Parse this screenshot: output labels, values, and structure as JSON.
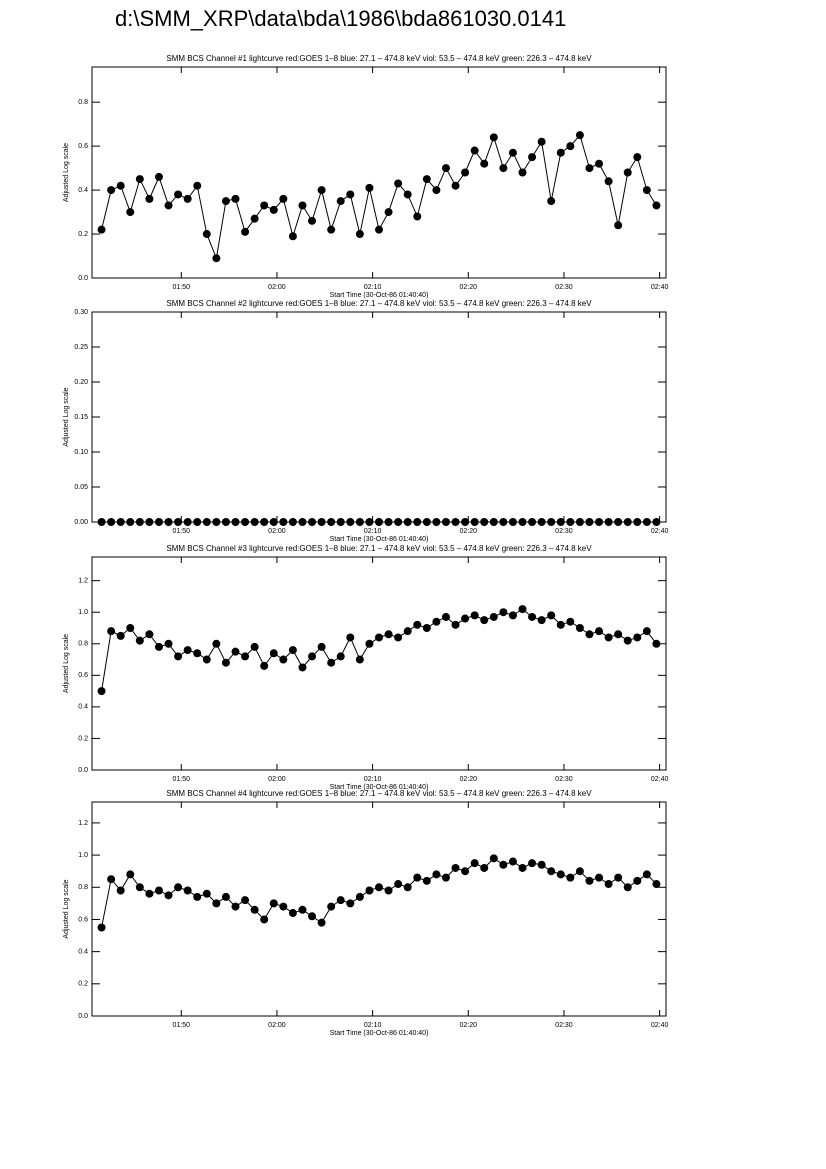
{
  "title": "d:\\SMM_XRP\\data\\bda\\1986\\bda861030.0141",
  "chart_data": [
    {
      "type": "line",
      "title": "SMM BCS Channel #1 lightcurve  red:GOES 1–8  blue: 27.1 – 474.8 keV  viol: 53.5 – 474.8 keV  green: 226.3 – 474.8 keV",
      "xlabel": "Start Time (30-Oct-86 01:40:40)",
      "ylabel": "Adjusted Log scale",
      "xlim": [
        0,
        60
      ],
      "xticks": [
        {
          "value": 9.333,
          "label": "01:50"
        },
        {
          "value": 19.333,
          "label": "02:00"
        },
        {
          "value": 29.333,
          "label": "02:10"
        },
        {
          "value": 39.333,
          "label": "02:20"
        },
        {
          "value": 49.333,
          "label": "02:30"
        },
        {
          "value": 59.333,
          "label": "02:40"
        }
      ],
      "ylim": [
        0,
        0.96
      ],
      "yticks": [
        {
          "value": 0,
          "label": "0.0"
        },
        0.2,
        0.4,
        0.6,
        0.8
      ],
      "color": "#000000",
      "x": [
        1,
        2,
        3,
        4,
        5,
        6,
        7,
        8,
        9,
        10,
        11,
        12,
        13,
        14,
        15,
        16,
        17,
        18,
        19,
        20,
        21,
        22,
        23,
        24,
        25,
        26,
        27,
        28,
        29,
        30,
        31,
        32,
        33,
        34,
        35,
        36,
        37,
        38,
        39,
        40,
        41,
        42,
        43,
        44,
        45,
        46,
        47,
        48,
        49,
        50,
        51,
        52,
        53,
        54,
        55,
        56,
        57,
        58,
        59
      ],
      "values": [
        0.22,
        0.4,
        0.42,
        0.3,
        0.45,
        0.36,
        0.46,
        0.33,
        0.38,
        0.36,
        0.42,
        0.2,
        0.09,
        0.35,
        0.36,
        0.21,
        0.27,
        0.33,
        0.31,
        0.36,
        0.19,
        0.33,
        0.26,
        0.4,
        0.22,
        0.35,
        0.38,
        0.2,
        0.41,
        0.22,
        0.3,
        0.43,
        0.38,
        0.28,
        0.45,
        0.4,
        0.5,
        0.42,
        0.48,
        0.58,
        0.52,
        0.64,
        0.5,
        0.57,
        0.48,
        0.55,
        0.62,
        0.35,
        0.57,
        0.6,
        0.65,
        0.5,
        0.52,
        0.44,
        0.24,
        0.48,
        0.55,
        0.4,
        0.33
      ]
    },
    {
      "type": "line",
      "title": "SMM BCS Channel #2 lightcurve  red:GOES 1–8  blue: 27.1 – 474.8 keV  viol: 53.5 – 474.8 keV  green: 226.3 – 474.8 keV",
      "xlabel": "Start Time (30-Oct-86 01:40:40)",
      "ylabel": "Adjusted Log scale",
      "xlim": [
        0,
        60
      ],
      "xticks": [
        {
          "value": 9.333,
          "label": "01:50"
        },
        {
          "value": 19.333,
          "label": "02:00"
        },
        {
          "value": 29.333,
          "label": "02:10"
        },
        {
          "value": 39.333,
          "label": "02:20"
        },
        {
          "value": 49.333,
          "label": "02:30"
        },
        {
          "value": 59.333,
          "label": "02:40"
        }
      ],
      "ylim": [
        0,
        0.3
      ],
      "yticks": [
        {
          "value": 0,
          "label": "0.00"
        },
        0.05,
        {
          "value": 0.1,
          "label": "0.10"
        },
        0.15,
        {
          "value": 0.2,
          "label": "0.20"
        },
        0.25,
        {
          "value": 0.3,
          "label": "0.30"
        }
      ],
      "color": "#000000",
      "x": [
        1,
        2,
        3,
        4,
        5,
        6,
        7,
        8,
        9,
        10,
        11,
        12,
        13,
        14,
        15,
        16,
        17,
        18,
        19,
        20,
        21,
        22,
        23,
        24,
        25,
        26,
        27,
        28,
        29,
        30,
        31,
        32,
        33,
        34,
        35,
        36,
        37,
        38,
        39,
        40,
        41,
        42,
        43,
        44,
        45,
        46,
        47,
        48,
        49,
        50,
        51,
        52,
        53,
        54,
        55,
        56,
        57,
        58,
        59
      ],
      "values": [
        0,
        0,
        0,
        0,
        0,
        0,
        0,
        0,
        0,
        0,
        0,
        0,
        0,
        0,
        0,
        0,
        0,
        0,
        0,
        0,
        0,
        0,
        0,
        0,
        0,
        0,
        0,
        0,
        0,
        0,
        0,
        0,
        0,
        0,
        0,
        0,
        0,
        0,
        0,
        0,
        0,
        0,
        0,
        0,
        0,
        0,
        0,
        0,
        0,
        0,
        0,
        0,
        0,
        0,
        0,
        0,
        0,
        0,
        0
      ]
    },
    {
      "type": "line",
      "title": "SMM BCS Channel #3 lightcurve  red:GOES 1–8  blue: 27.1 – 474.8 keV  viol: 53.5 – 474.8 keV  green: 226.3 – 474.8 keV",
      "xlabel": "Start Time (30-Oct-86 01:40:40)",
      "ylabel": "Adjusted Log scale",
      "xlim": [
        0,
        60
      ],
      "xticks": [
        {
          "value": 9.333,
          "label": "01:50"
        },
        {
          "value": 19.333,
          "label": "02:00"
        },
        {
          "value": 29.333,
          "label": "02:10"
        },
        {
          "value": 39.333,
          "label": "02:20"
        },
        {
          "value": 49.333,
          "label": "02:30"
        },
        {
          "value": 59.333,
          "label": "02:40"
        }
      ],
      "ylim": [
        0,
        1.35
      ],
      "yticks": [
        {
          "value": 0,
          "label": "0.0"
        },
        0.2,
        0.4,
        0.6,
        0.8,
        {
          "value": 1,
          "label": "1.0"
        },
        1.2
      ],
      "color": "#000000",
      "x": [
        1,
        2,
        3,
        4,
        5,
        6,
        7,
        8,
        9,
        10,
        11,
        12,
        13,
        14,
        15,
        16,
        17,
        18,
        19,
        20,
        21,
        22,
        23,
        24,
        25,
        26,
        27,
        28,
        29,
        30,
        31,
        32,
        33,
        34,
        35,
        36,
        37,
        38,
        39,
        40,
        41,
        42,
        43,
        44,
        45,
        46,
        47,
        48,
        49,
        50,
        51,
        52,
        53,
        54,
        55,
        56,
        57,
        58,
        59
      ],
      "values": [
        0.5,
        0.88,
        0.85,
        0.9,
        0.82,
        0.86,
        0.78,
        0.8,
        0.72,
        0.76,
        0.74,
        0.7,
        0.8,
        0.68,
        0.75,
        0.72,
        0.78,
        0.66,
        0.74,
        0.7,
        0.76,
        0.65,
        0.72,
        0.78,
        0.68,
        0.72,
        0.84,
        0.7,
        0.8,
        0.84,
        0.86,
        0.84,
        0.88,
        0.92,
        0.9,
        0.94,
        0.97,
        0.92,
        0.96,
        0.98,
        0.95,
        0.97,
        1.0,
        0.98,
        1.02,
        0.97,
        0.95,
        0.98,
        0.92,
        0.94,
        0.9,
        0.86,
        0.88,
        0.84,
        0.86,
        0.82,
        0.84,
        0.88,
        0.8
      ]
    },
    {
      "type": "line",
      "title": "SMM BCS Channel #4 lightcurve  red:GOES 1–8  blue: 27.1 – 474.8 keV  viol: 53.5 – 474.8 keV  green: 226.3 – 474.8 keV",
      "xlabel": "Start Time (30-Oct-86 01:40:40)",
      "ylabel": "Adjusted Log scale",
      "xlim": [
        0,
        60
      ],
      "xticks": [
        {
          "value": 9.333,
          "label": "01:50"
        },
        {
          "value": 19.333,
          "label": "02:00"
        },
        {
          "value": 29.333,
          "label": "02:10"
        },
        {
          "value": 39.333,
          "label": "02:20"
        },
        {
          "value": 49.333,
          "label": "02:30"
        },
        {
          "value": 59.333,
          "label": "02:40"
        }
      ],
      "ylim": [
        0,
        1.33
      ],
      "yticks": [
        {
          "value": 0,
          "label": "0.0"
        },
        0.2,
        0.4,
        0.6,
        0.8,
        {
          "value": 1,
          "label": "1.0"
        },
        1.2
      ],
      "color": "#000000",
      "x": [
        1,
        2,
        3,
        4,
        5,
        6,
        7,
        8,
        9,
        10,
        11,
        12,
        13,
        14,
        15,
        16,
        17,
        18,
        19,
        20,
        21,
        22,
        23,
        24,
        25,
        26,
        27,
        28,
        29,
        30,
        31,
        32,
        33,
        34,
        35,
        36,
        37,
        38,
        39,
        40,
        41,
        42,
        43,
        44,
        45,
        46,
        47,
        48,
        49,
        50,
        51,
        52,
        53,
        54,
        55,
        56,
        57,
        58,
        59
      ],
      "values": [
        0.55,
        0.85,
        0.78,
        0.88,
        0.8,
        0.76,
        0.78,
        0.75,
        0.8,
        0.78,
        0.74,
        0.76,
        0.7,
        0.74,
        0.68,
        0.72,
        0.66,
        0.6,
        0.7,
        0.68,
        0.64,
        0.66,
        0.62,
        0.58,
        0.68,
        0.72,
        0.7,
        0.74,
        0.78,
        0.8,
        0.78,
        0.82,
        0.8,
        0.86,
        0.84,
        0.88,
        0.86,
        0.92,
        0.9,
        0.95,
        0.92,
        0.98,
        0.94,
        0.96,
        0.92,
        0.95,
        0.94,
        0.9,
        0.88,
        0.86,
        0.9,
        0.84,
        0.86,
        0.82,
        0.86,
        0.8,
        0.84,
        0.88,
        0.82
      ]
    }
  ]
}
